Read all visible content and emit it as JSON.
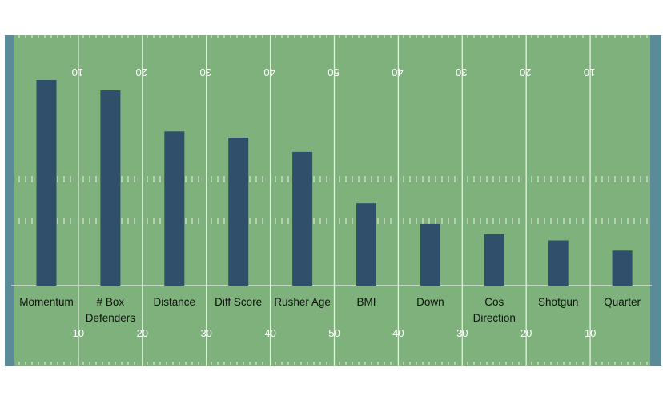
{
  "chart_data": {
    "type": "bar",
    "title": "",
    "xlabel": "",
    "ylabel": "",
    "ylim": [
      0,
      100
    ],
    "categories": [
      "Momentum",
      "# Box Defenders",
      "Distance",
      "Diff Score",
      "Rusher Age",
      "BMI",
      "Down",
      "Cos Direction",
      "Shotgun",
      "Quarter"
    ],
    "category_lines": [
      [
        "Momentum"
      ],
      [
        "# Box",
        "Defenders"
      ],
      [
        "Distance"
      ],
      [
        "Diff Score"
      ],
      [
        "Rusher Age"
      ],
      [
        "BMI"
      ],
      [
        "Down"
      ],
      [
        "Cos",
        "Direction"
      ],
      [
        "Shotgun"
      ],
      [
        "Quarter"
      ]
    ],
    "values": [
      100,
      95,
      75,
      72,
      65,
      40,
      30,
      25,
      22,
      17
    ],
    "yard_numbers": [
      "10",
      "20",
      "30",
      "40",
      "50",
      "40",
      "30",
      "20",
      "10"
    ],
    "colors": {
      "bar": "#2f4f6b",
      "field": "#7fb17c",
      "endzone": "#5b8a98",
      "line": "#e8f0e4",
      "text": "#111111",
      "yard_number": "#ffffff"
    }
  }
}
